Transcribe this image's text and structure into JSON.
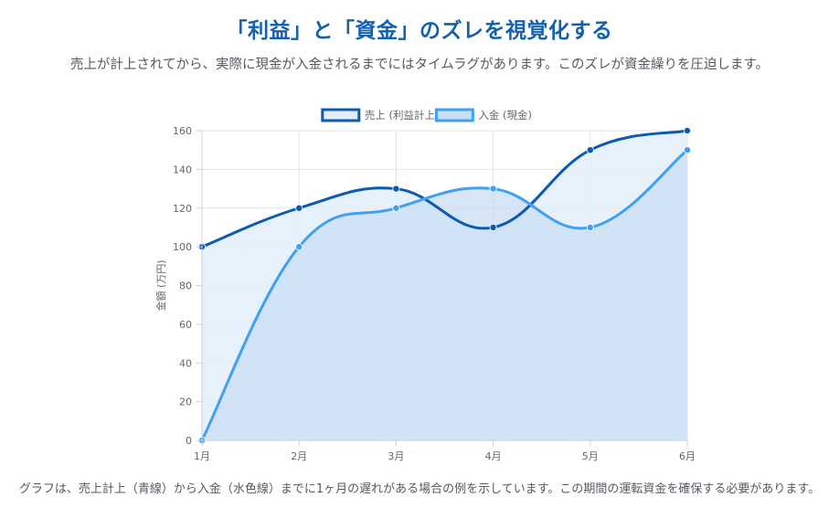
{
  "header": {
    "title": "「利益」と「資金」のズレを視覚化する",
    "subtitle": "売上が計上されてから、実際に現金が入金されるまでにはタイムラグがあります。このズレが資金繰りを圧迫します。"
  },
  "chart_data": {
    "type": "line",
    "categories": [
      "1月",
      "2月",
      "3月",
      "4月",
      "5月",
      "6月"
    ],
    "series": [
      {
        "name": "売上 (利益計上)",
        "values": [
          100,
          120,
          130,
          110,
          150,
          160
        ],
        "color": "#0d5bb0",
        "fill": "#e3eefa"
      },
      {
        "name": "入金 (現金)",
        "values": [
          0,
          100,
          120,
          130,
          110,
          150
        ],
        "color": "#42a0f0",
        "fill": "#c9def4"
      }
    ],
    "ylabel": "金額 (万円)",
    "ylim": [
      0,
      160
    ],
    "ytick_step": 20,
    "grid": true,
    "legend": "top-center",
    "curve": "smooth",
    "area_fill": true
  },
  "footnote": {
    "text": "グラフは、売上計上（青線）から入金（水色線）までに1ヶ月の遅れがある場合の例を示しています。この期間の運転資金を確保する必要があります。"
  }
}
